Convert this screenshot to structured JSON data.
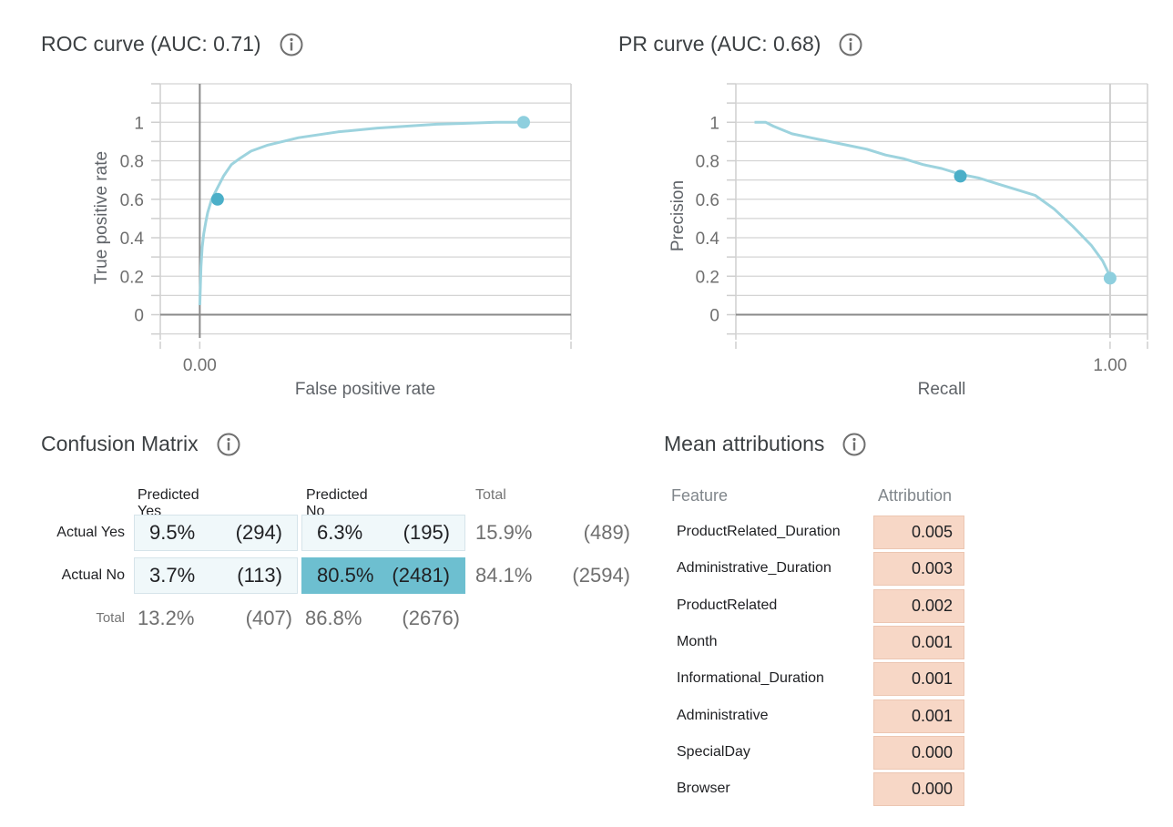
{
  "roc": {
    "title": "ROC curve (AUC: 0.71)",
    "xlabel": "False positive rate",
    "ylabel": "True positive rate"
  },
  "pr": {
    "title": "PR curve (AUC: 0.68)",
    "xlabel": "Recall",
    "ylabel": "Precision"
  },
  "chart_data": [
    {
      "type": "line",
      "title": "ROC curve (AUC: 0.71)",
      "xlabel": "False positive rate",
      "ylabel": "True positive rate",
      "x_tick_labels": [
        "0.00"
      ],
      "y_ticks": [
        0,
        0.2,
        0.4,
        0.6,
        0.8,
        1
      ],
      "y_tick_labels": [
        "0",
        "0.2",
        "0.4",
        "0.6",
        "0.8",
        "1"
      ],
      "xlim": [
        -0.1,
        0.94
      ],
      "ylim": [
        -0.13,
        1.2
      ],
      "grid": true,
      "series": [
        {
          "x": [
            0.0,
            0.003,
            0.006,
            0.01,
            0.015,
            0.02,
            0.03,
            0.045,
            0.06,
            0.08,
            0.1,
            0.13,
            0.17,
            0.25,
            0.35,
            0.45,
            0.6,
            0.75,
            0.82
          ],
          "y": [
            0.05,
            0.25,
            0.35,
            0.42,
            0.48,
            0.53,
            0.6,
            0.66,
            0.72,
            0.78,
            0.81,
            0.85,
            0.88,
            0.92,
            0.95,
            0.97,
            0.99,
            1.0,
            1.0
          ]
        }
      ],
      "markers": [
        {
          "x": 0.045,
          "y": 0.6,
          "color": "#4bafc8"
        },
        {
          "x": 0.82,
          "y": 1.0,
          "color": "#8ecfde"
        }
      ]
    },
    {
      "type": "line",
      "title": "PR curve (AUC: 0.68)",
      "xlabel": "Recall",
      "ylabel": "Precision",
      "x_tick_labels": [
        "1.00"
      ],
      "y_ticks": [
        0,
        0.2,
        0.4,
        0.6,
        0.8,
        1
      ],
      "y_tick_labels": [
        "0",
        "0.2",
        "0.4",
        "0.6",
        "0.8",
        "1"
      ],
      "xlim": [
        0.0,
        1.1
      ],
      "ylim": [
        -0.13,
        1.2
      ],
      "grid": true,
      "series": [
        {
          "x": [
            0.05,
            0.08,
            0.1,
            0.15,
            0.2,
            0.25,
            0.3,
            0.35,
            0.4,
            0.45,
            0.5,
            0.55,
            0.6,
            0.65,
            0.7,
            0.75,
            0.8,
            0.85,
            0.9,
            0.95,
            0.98,
            1.0
          ],
          "y": [
            1.0,
            1.0,
            0.98,
            0.94,
            0.92,
            0.9,
            0.88,
            0.86,
            0.83,
            0.81,
            0.78,
            0.76,
            0.73,
            0.71,
            0.68,
            0.65,
            0.62,
            0.55,
            0.46,
            0.36,
            0.28,
            0.2
          ]
        }
      ],
      "markers": [
        {
          "x": 0.6,
          "y": 0.72,
          "color": "#4bafc8"
        },
        {
          "x": 1.0,
          "y": 0.19,
          "color": "#8ecfde"
        }
      ]
    }
  ],
  "confusion_matrix": {
    "title": "Confusion Matrix",
    "col_headers": [
      "Predicted Yes",
      "Predicted No",
      "Total"
    ],
    "rows": [
      {
        "label": "Actual Yes",
        "cells": [
          {
            "pct": "9.5%",
            "count": "(294)"
          },
          {
            "pct": "6.3%",
            "count": "(195)"
          }
        ],
        "total": {
          "pct": "15.9%",
          "count": "(489)"
        }
      },
      {
        "label": "Actual No",
        "cells": [
          {
            "pct": "3.7%",
            "count": "(113)"
          },
          {
            "pct": "80.5%",
            "count": "(2481)"
          }
        ],
        "total": {
          "pct": "84.1%",
          "count": "(2594)"
        }
      }
    ],
    "total_row": {
      "label": "Total",
      "cells": [
        {
          "pct": "13.2%",
          "count": "(407)"
        },
        {
          "pct": "86.8%",
          "count": "(2676)"
        }
      ]
    }
  },
  "attributions": {
    "title": "Mean attributions",
    "col_feature": "Feature",
    "col_attribution": "Attribution",
    "items": [
      {
        "feature": "ProductRelated_Duration",
        "value": "0.005"
      },
      {
        "feature": "Administrative_Duration",
        "value": "0.003"
      },
      {
        "feature": "ProductRelated",
        "value": "0.002"
      },
      {
        "feature": "Month",
        "value": "0.001"
      },
      {
        "feature": "Informational_Duration",
        "value": "0.001"
      },
      {
        "feature": "Administrative",
        "value": "0.001"
      },
      {
        "feature": "SpecialDay",
        "value": "0.000"
      },
      {
        "feature": "Browser",
        "value": "0.000"
      }
    ]
  },
  "colors": {
    "curve": "#9dd3de",
    "marker_dark": "#4bafc8",
    "marker_light": "#8ecfde",
    "cm_dark": "#6dbfd0",
    "cm_light": "#f0f8fa",
    "attr_fill": "#f7d7c6"
  }
}
